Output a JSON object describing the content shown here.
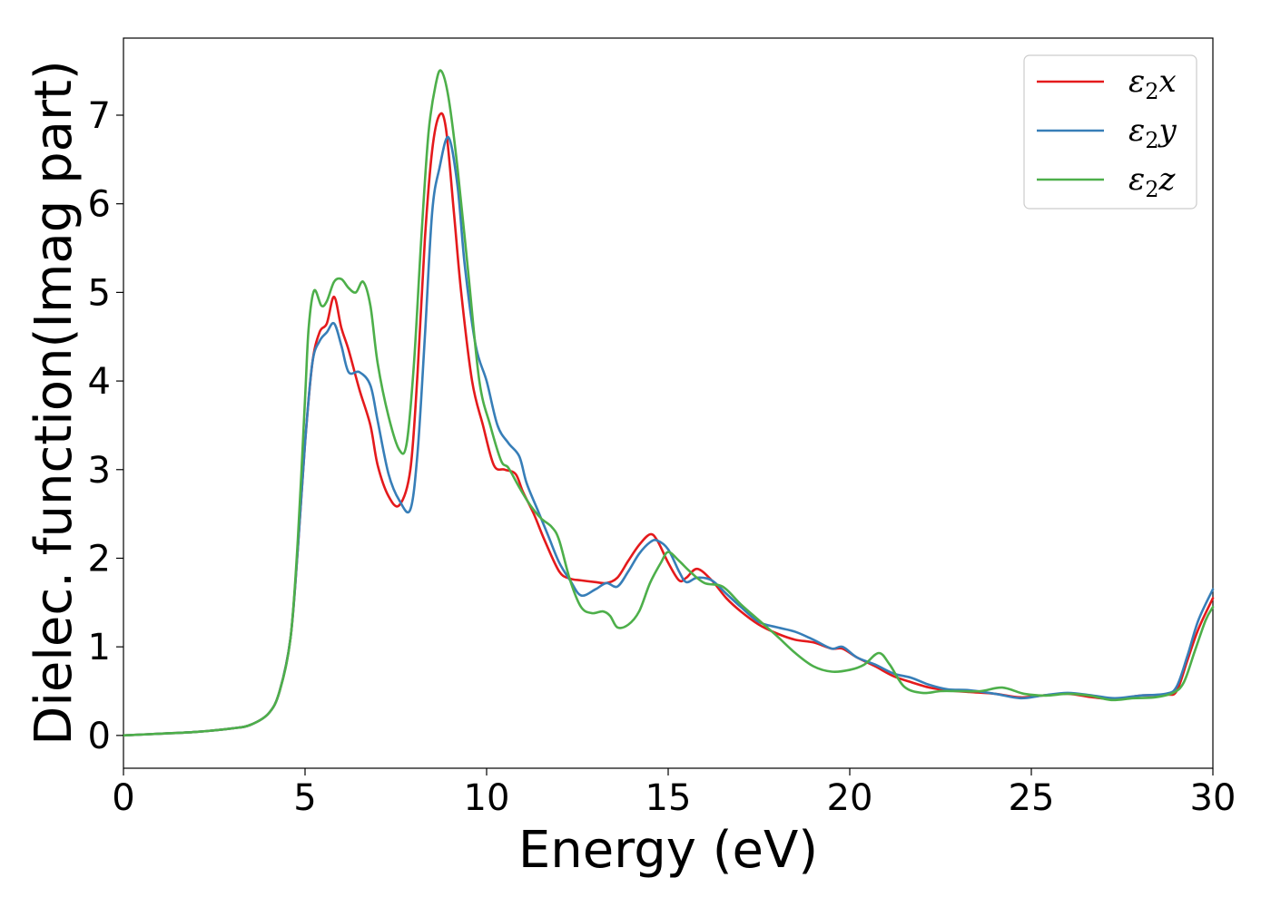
{
  "chart_data": {
    "type": "line",
    "title": "",
    "xlabel": "Energy (eV)",
    "ylabel": "Dielec. function(Imag part)",
    "xlim": [
      0,
      30
    ],
    "ylim": [
      -0.37,
      7.87
    ],
    "xticks": [
      0,
      5,
      10,
      15,
      20,
      25,
      30
    ],
    "yticks": [
      0,
      1,
      2,
      3,
      4,
      5,
      6,
      7
    ],
    "grid": false,
    "legend_position": "top-right",
    "series": [
      {
        "name": "ε₂x",
        "legend": {
          "base": "ε",
          "sub": "2",
          "axis": "x"
        },
        "color": "#e41a1c",
        "x": [
          0,
          1,
          2,
          3,
          3.5,
          4,
          4.3,
          4.6,
          4.8,
          5.0,
          5.2,
          5.4,
          5.6,
          5.8,
          6.0,
          6.2,
          6.5,
          6.8,
          7.0,
          7.3,
          7.6,
          7.9,
          8.1,
          8.3,
          8.5,
          8.7,
          8.88,
          9.1,
          9.3,
          9.6,
          9.9,
          10.2,
          10.5,
          10.8,
          11.0,
          11.3,
          11.6,
          12.0,
          12.3,
          12.6,
          13.0,
          13.3,
          13.6,
          13.9,
          14.2,
          14.5,
          14.7,
          15.0,
          15.3,
          15.5,
          15.8,
          16.2,
          16.6,
          17.0,
          17.5,
          18.0,
          18.5,
          19.0,
          19.5,
          19.8,
          20.2,
          20.7,
          21.2,
          21.7,
          22.2,
          22.7,
          23.3,
          24.0,
          24.7,
          25.3,
          26.0,
          26.7,
          27.3,
          28.0,
          28.7,
          29.0,
          29.3,
          29.6,
          30.0
        ],
        "values": [
          0.0,
          0.02,
          0.04,
          0.08,
          0.12,
          0.25,
          0.5,
          1.1,
          2.1,
          3.3,
          4.2,
          4.55,
          4.65,
          4.95,
          4.6,
          4.35,
          3.9,
          3.5,
          3.05,
          2.7,
          2.6,
          3.0,
          4.1,
          5.6,
          6.6,
          7.0,
          6.85,
          5.9,
          5.0,
          4.0,
          3.5,
          3.05,
          3.0,
          2.95,
          2.75,
          2.5,
          2.2,
          1.85,
          1.77,
          1.75,
          1.73,
          1.72,
          1.78,
          1.97,
          2.15,
          2.27,
          2.2,
          1.95,
          1.75,
          1.78,
          1.88,
          1.75,
          1.55,
          1.4,
          1.25,
          1.15,
          1.08,
          1.05,
          0.98,
          0.98,
          0.88,
          0.78,
          0.67,
          0.6,
          0.54,
          0.51,
          0.49,
          0.47,
          0.43,
          0.45,
          0.47,
          0.43,
          0.41,
          0.45,
          0.46,
          0.5,
          0.85,
          1.2,
          1.55
        ]
      },
      {
        "name": "ε₂y",
        "legend": {
          "base": "ε",
          "sub": "2",
          "axis": "y"
        },
        "color": "#377eb8",
        "x": [
          0,
          1,
          2,
          3,
          3.5,
          4,
          4.3,
          4.6,
          4.8,
          5.0,
          5.2,
          5.4,
          5.6,
          5.8,
          6.0,
          6.2,
          6.5,
          6.8,
          7.0,
          7.3,
          7.6,
          7.9,
          8.1,
          8.3,
          8.5,
          8.7,
          8.95,
          9.2,
          9.4,
          9.7,
          10.0,
          10.3,
          10.6,
          10.9,
          11.1,
          11.4,
          11.7,
          12.0,
          12.3,
          12.6,
          13.0,
          13.3,
          13.6,
          13.9,
          14.2,
          14.5,
          14.7,
          15.0,
          15.3,
          15.5,
          15.8,
          16.2,
          16.6,
          17.0,
          17.5,
          18.0,
          18.5,
          19.0,
          19.5,
          19.8,
          20.2,
          20.7,
          21.2,
          21.7,
          22.2,
          22.7,
          23.3,
          24.0,
          24.7,
          25.3,
          26.0,
          26.7,
          27.3,
          28.0,
          28.7,
          29.0,
          29.3,
          29.6,
          30.0
        ],
        "values": [
          0.0,
          0.02,
          0.04,
          0.08,
          0.12,
          0.25,
          0.5,
          1.1,
          2.1,
          3.3,
          4.2,
          4.45,
          4.55,
          4.65,
          4.4,
          4.1,
          4.1,
          3.95,
          3.55,
          2.95,
          2.65,
          2.55,
          3.2,
          4.5,
          5.9,
          6.4,
          6.75,
          6.2,
          5.3,
          4.4,
          4.0,
          3.5,
          3.3,
          3.15,
          2.85,
          2.55,
          2.25,
          1.95,
          1.75,
          1.58,
          1.65,
          1.72,
          1.68,
          1.85,
          2.05,
          2.18,
          2.2,
          2.1,
          1.85,
          1.73,
          1.78,
          1.75,
          1.6,
          1.45,
          1.28,
          1.22,
          1.17,
          1.08,
          0.98,
          1.0,
          0.88,
          0.8,
          0.7,
          0.65,
          0.57,
          0.52,
          0.51,
          0.47,
          0.42,
          0.45,
          0.48,
          0.45,
          0.42,
          0.45,
          0.47,
          0.55,
          0.9,
          1.3,
          1.65
        ]
      },
      {
        "name": "ε₂z",
        "legend": {
          "base": "ε",
          "sub": "2",
          "axis": "z"
        },
        "color": "#4daf4a",
        "x": [
          0,
          1,
          2,
          3,
          3.5,
          4,
          4.3,
          4.6,
          4.8,
          5.0,
          5.1,
          5.25,
          5.45,
          5.6,
          5.8,
          6.0,
          6.2,
          6.4,
          6.6,
          6.8,
          7.0,
          7.3,
          7.6,
          7.8,
          8.0,
          8.2,
          8.4,
          8.6,
          8.75,
          8.95,
          9.2,
          9.5,
          9.8,
          10.1,
          10.4,
          10.6,
          10.9,
          11.2,
          11.5,
          11.8,
          12.0,
          12.3,
          12.6,
          12.9,
          13.2,
          13.4,
          13.6,
          13.9,
          14.2,
          14.5,
          14.8,
          15.0,
          15.3,
          15.6,
          16.0,
          16.5,
          17.0,
          17.5,
          18.0,
          18.5,
          19.0,
          19.5,
          20.0,
          20.4,
          20.8,
          21.1,
          21.5,
          22.0,
          22.5,
          23.0,
          23.6,
          24.2,
          24.8,
          25.4,
          26.0,
          26.6,
          27.2,
          27.8,
          28.4,
          28.9,
          29.2,
          29.5,
          29.8,
          30.0
        ],
        "values": [
          0.0,
          0.02,
          0.04,
          0.08,
          0.12,
          0.25,
          0.5,
          1.1,
          2.2,
          3.8,
          4.6,
          5.02,
          4.85,
          4.9,
          5.12,
          5.15,
          5.05,
          5.0,
          5.12,
          4.85,
          4.2,
          3.6,
          3.22,
          3.3,
          4.2,
          5.6,
          6.8,
          7.35,
          7.5,
          7.2,
          6.4,
          5.2,
          4.0,
          3.5,
          3.1,
          3.02,
          2.8,
          2.6,
          2.45,
          2.35,
          2.2,
          1.75,
          1.45,
          1.38,
          1.4,
          1.35,
          1.22,
          1.25,
          1.4,
          1.72,
          1.95,
          2.07,
          1.97,
          1.85,
          1.72,
          1.68,
          1.48,
          1.3,
          1.12,
          0.93,
          0.78,
          0.72,
          0.74,
          0.8,
          0.93,
          0.8,
          0.55,
          0.48,
          0.5,
          0.5,
          0.5,
          0.54,
          0.47,
          0.45,
          0.47,
          0.45,
          0.4,
          0.42,
          0.43,
          0.48,
          0.6,
          0.95,
          1.3,
          1.45
        ]
      }
    ]
  }
}
